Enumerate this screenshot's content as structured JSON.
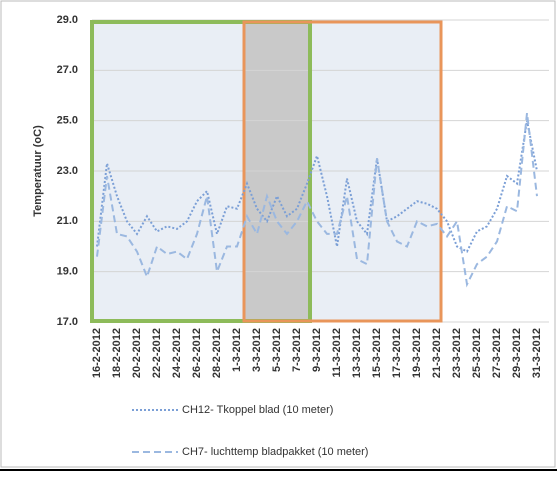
{
  "chart_data": {
    "type": "line",
    "y_label": "Temperatuur (oC)",
    "categories": [
      "16-2-2012",
      null,
      "18-2-2012",
      null,
      "20-2-2012",
      null,
      "22-2-2012",
      null,
      "24-2-2012",
      null,
      "26-2-2012",
      null,
      "28-2-2012",
      null,
      "1-3-2012",
      null,
      "3-3-2012",
      null,
      "5-3-2012",
      null,
      "7-3-2012",
      null,
      "9-3-2012",
      null,
      "11-3-2012",
      null,
      "13-3-2012",
      null,
      "15-3-2012",
      null,
      "17-3-2012",
      null,
      "19-3-2012",
      null,
      "21-3-2012",
      null,
      "23-3-2012",
      null,
      "25-3-2012",
      null,
      "27-3-2012",
      null,
      "29-3-2012",
      null,
      "31-3-2012"
    ],
    "series": [
      {
        "name": "CH12- Tkoppel blad (10 meter)",
        "color": "#7b9fd6",
        "dash": "2 2",
        "values": [
          20.0,
          23.3,
          22.0,
          21.0,
          20.5,
          21.2,
          20.6,
          20.8,
          20.7,
          21.0,
          21.8,
          22.2,
          20.5,
          21.6,
          21.5,
          22.5,
          21.5,
          21.0,
          22.0,
          21.2,
          21.5,
          22.5,
          23.6,
          22.0,
          20.0,
          22.7,
          21.0,
          20.5,
          23.5,
          21.0,
          21.2,
          21.5,
          21.8,
          21.7,
          21.5,
          21.0,
          20.0,
          19.8,
          20.6,
          20.8,
          21.5,
          22.8,
          22.5,
          25.0,
          23.0
        ]
      },
      {
        "name": "CH7- luchttemp bladpakket (10 meter)",
        "color": "#9bb8e0",
        "dash": "7 4",
        "values": [
          19.6,
          22.8,
          20.5,
          20.4,
          19.8,
          18.8,
          20.0,
          19.7,
          19.8,
          19.5,
          20.5,
          22.0,
          19.0,
          20.0,
          20.0,
          21.2,
          20.5,
          22.0,
          21.0,
          20.5,
          21.0,
          21.8,
          21.0,
          20.5,
          20.5,
          22.0,
          19.5,
          19.3,
          23.5,
          21.0,
          20.2,
          20.0,
          21.0,
          20.8,
          20.9,
          20.4,
          21.0,
          18.5,
          19.3,
          19.6,
          20.2,
          21.6,
          21.4,
          25.3,
          22.0
        ]
      }
    ],
    "ylim": [
      17,
      29
    ],
    "yticks": [
      {
        "value": 17,
        "label": "17.0"
      },
      {
        "value": 19,
        "label": "19.0"
      },
      {
        "value": 21,
        "label": "21.0"
      },
      {
        "value": 23,
        "label": "23.0"
      },
      {
        "value": 25,
        "label": "25.0"
      },
      {
        "value": 27,
        "label": "27.0"
      },
      {
        "value": 29,
        "label": "29.0"
      }
    ],
    "grid": true
  }
}
